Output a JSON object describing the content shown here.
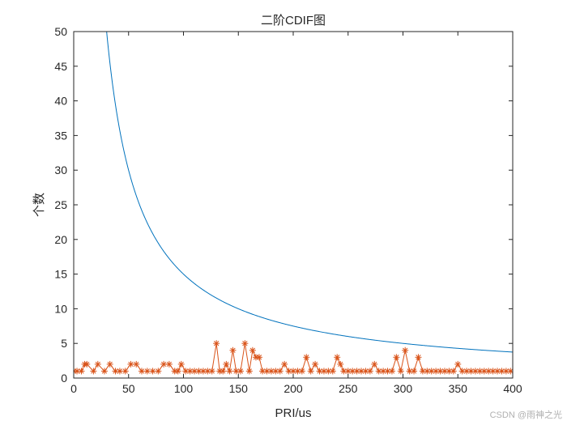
{
  "chart_data": {
    "type": "line",
    "title": "二阶CDIF图",
    "xlabel": "PRI/us",
    "ylabel": "个数",
    "xlim": [
      0,
      400
    ],
    "ylim": [
      0,
      50
    ],
    "xticks": [
      0,
      50,
      100,
      150,
      200,
      250,
      300,
      350,
      400
    ],
    "yticks": [
      0,
      5,
      10,
      15,
      20,
      25,
      30,
      35,
      40,
      45,
      50
    ],
    "grid": false,
    "legend": "none",
    "series": [
      {
        "kind": "threshold-curve",
        "color": "#0072BD",
        "function": "1500/x",
        "x": [
          30,
          35,
          40,
          45,
          50,
          60,
          70,
          80,
          90,
          100,
          120,
          140,
          160,
          180,
          200,
          250,
          300,
          350,
          400
        ],
        "values": [
          50,
          42.9,
          37.5,
          33.3,
          30,
          25,
          21.4,
          18.8,
          16.7,
          15,
          12.5,
          10.7,
          9.4,
          8.3,
          7.5,
          6,
          5,
          4.3,
          3.75
        ]
      },
      {
        "kind": "histogram-count",
        "color": "#D95319",
        "marker": "asterisk",
        "x": [
          0,
          3,
          7,
          10,
          12,
          18,
          22,
          28,
          33,
          38,
          42,
          47,
          52,
          57,
          62,
          67,
          72,
          77,
          82,
          87,
          92,
          95,
          98,
          102,
          106,
          110,
          114,
          118,
          122,
          126,
          130,
          133,
          136,
          139,
          142,
          145,
          148,
          152,
          156,
          160,
          163,
          166,
          169,
          172,
          176,
          180,
          184,
          188,
          192,
          196,
          200,
          204,
          208,
          212,
          216,
          220,
          224,
          228,
          232,
          236,
          240,
          243,
          246,
          250,
          254,
          258,
          262,
          266,
          270,
          274,
          278,
          282,
          286,
          290,
          294,
          298,
          302,
          306,
          310,
          314,
          318,
          322,
          326,
          330,
          334,
          338,
          342,
          346,
          350,
          354,
          358,
          362,
          366,
          370,
          374,
          378,
          382,
          386,
          390,
          394,
          398
        ],
        "values": [
          1,
          1,
          1,
          2,
          2,
          1,
          2,
          1,
          2,
          1,
          1,
          1,
          2,
          2,
          1,
          1,
          1,
          1,
          2,
          2,
          1,
          1,
          2,
          1,
          1,
          1,
          1,
          1,
          1,
          1,
          5,
          1,
          1,
          2,
          1,
          4,
          1,
          1,
          5,
          1,
          4,
          3,
          3,
          1,
          1,
          1,
          1,
          1,
          2,
          1,
          1,
          1,
          1,
          3,
          1,
          2,
          1,
          1,
          1,
          1,
          3,
          2,
          1,
          1,
          1,
          1,
          1,
          1,
          1,
          2,
          1,
          1,
          1,
          1,
          3,
          1,
          4,
          1,
          1,
          3,
          1,
          1,
          1,
          1,
          1,
          1,
          1,
          1,
          2,
          1,
          1,
          1,
          1,
          1,
          1,
          1,
          1,
          1,
          1,
          1,
          1
        ]
      }
    ]
  },
  "watermark": "CSDN @雨神之光"
}
